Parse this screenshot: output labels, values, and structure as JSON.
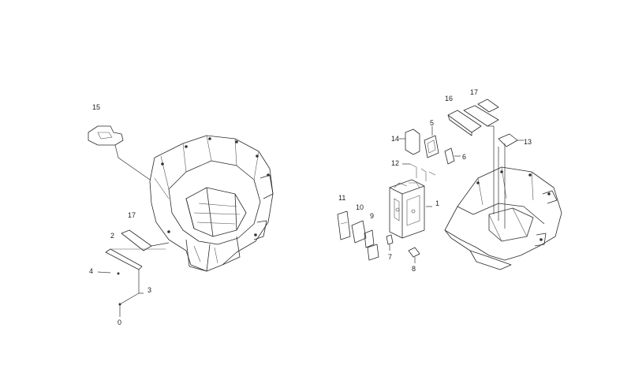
{
  "callouts": {
    "c0": "0",
    "c1": "1",
    "c2": "2",
    "c3": "3",
    "c4": "4",
    "c5": "5",
    "c6": "6",
    "c7": "7",
    "c8": "8",
    "c9": "9",
    "c10": "10",
    "c11": "11",
    "c12": "12",
    "c13": "13",
    "c14": "14",
    "c15": "15",
    "c16": "16",
    "c17_left": "17",
    "c17_right": "17"
  }
}
